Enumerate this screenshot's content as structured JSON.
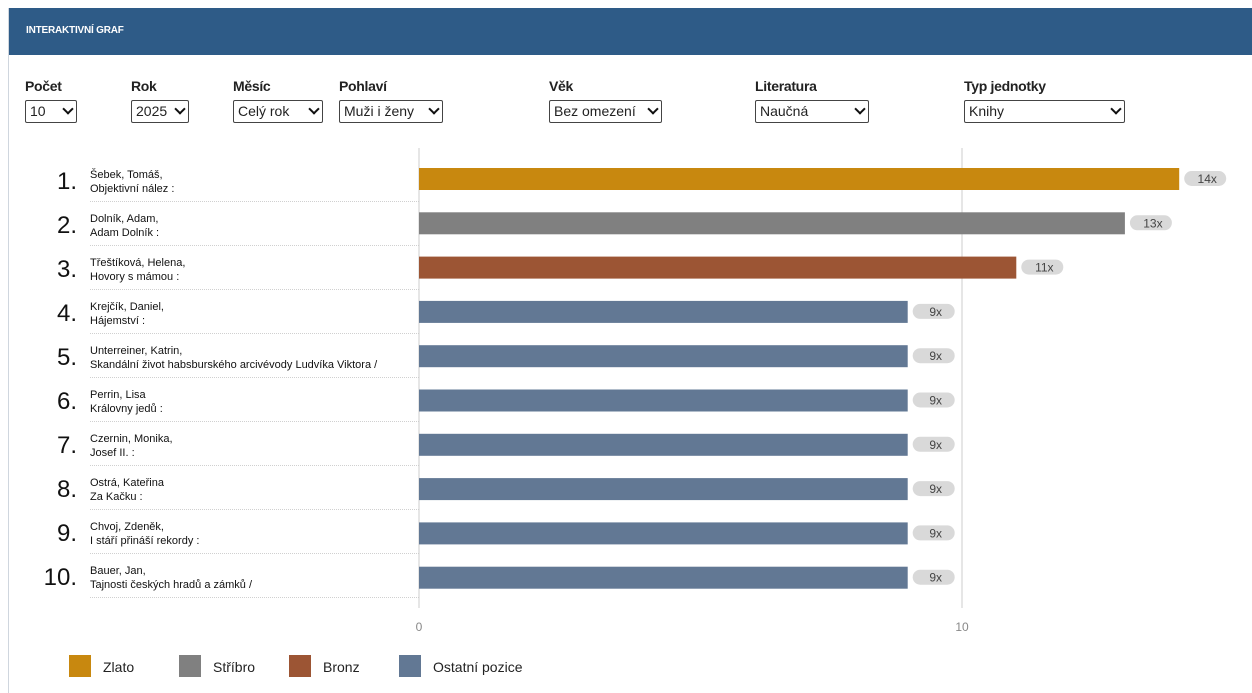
{
  "header": {
    "title": "INTERAKTIVNÍ GRAF"
  },
  "filters": [
    {
      "label": "Počet",
      "value": "10"
    },
    {
      "label": "Rok",
      "value": "2025"
    },
    {
      "label": "Měsíc",
      "value": "Celý rok"
    },
    {
      "label": "Pohlaví",
      "value": "Muži i ženy"
    },
    {
      "label": "Věk",
      "value": "Bez omezení"
    },
    {
      "label": "Literatura",
      "value": "Naučná"
    },
    {
      "label": "Typ jednotky",
      "value": "Knihy"
    }
  ],
  "colors": {
    "header_bg": "#2e5b87",
    "gold": "#c8880f",
    "silver": "#808080",
    "bronze": "#9c5534",
    "other": "#627894",
    "badge_bg": "#d9d9d9"
  },
  "legend": [
    {
      "label": "Zlato",
      "color": "#c8880f"
    },
    {
      "label": "Stříbro",
      "color": "#808080"
    },
    {
      "label": "Bronz",
      "color": "#9c5534"
    },
    {
      "label": "Ostatní pozice",
      "color": "#627894"
    }
  ],
  "chart_data": {
    "type": "bar",
    "orientation": "horizontal",
    "categories": [
      {
        "rank": "1.",
        "author": "Šebek, Tomáš,",
        "title": "Objektivní nález :"
      },
      {
        "rank": "2.",
        "author": "Dolník, Adam,",
        "title": "Adam Dolník :"
      },
      {
        "rank": "3.",
        "author": "Třeštíková, Helena,",
        "title": "Hovory s mámou :"
      },
      {
        "rank": "4.",
        "author": "Krejčík, Daniel,",
        "title": "Hájemství :"
      },
      {
        "rank": "5.",
        "author": "Unterreiner, Katrin,",
        "title": "Skandální život habsburského arcivévody Ludvíka Viktora /"
      },
      {
        "rank": "6.",
        "author": "Perrin, Lisa",
        "title": "Královny jedů :"
      },
      {
        "rank": "7.",
        "author": "Czernin, Monika,",
        "title": "Josef II. :"
      },
      {
        "rank": "8.",
        "author": "Ostrá, Kateřina",
        "title": "Za Kačku :"
      },
      {
        "rank": "9.",
        "author": "Chvoj, Zdeněk,",
        "title": "I stáří přináší rekordy :"
      },
      {
        "rank": "10.",
        "author": "Bauer, Jan,",
        "title": "Tajnosti českých hradů a zámků /"
      }
    ],
    "values": [
      14,
      13,
      11,
      9,
      9,
      9,
      9,
      9,
      9,
      9
    ],
    "value_labels": [
      "14x",
      "13x",
      "11x",
      "9x",
      "9x",
      "9x",
      "9x",
      "9x",
      "9x",
      "9x"
    ],
    "bar_colors": [
      "gold",
      "silver",
      "bronze",
      "other",
      "other",
      "other",
      "other",
      "other",
      "other",
      "other"
    ],
    "x_ticks": [
      0,
      10
    ],
    "x_tick_labels": [
      "0",
      "10"
    ],
    "grid": true,
    "legend_position": "bottom-left"
  }
}
